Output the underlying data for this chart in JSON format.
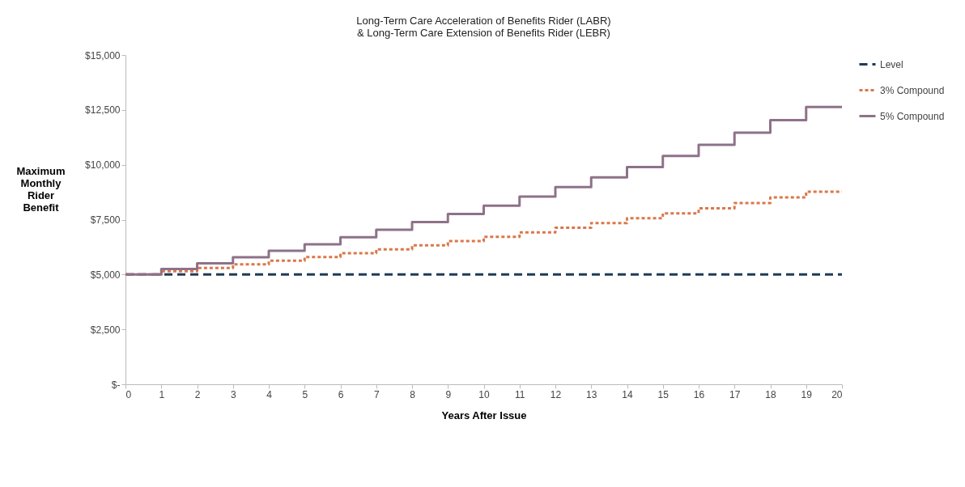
{
  "chart_data": {
    "type": "step",
    "title": "Long-Term Care Acceleration of Benefits Rider (LABR)\n& Long-Term Care Extension of Benefits Rider (LEBR)",
    "xlabel": "Years After Issue",
    "ylabel": "Maximum Monthly Rider Benefit",
    "x": [
      0,
      1,
      2,
      3,
      4,
      5,
      6,
      7,
      8,
      9,
      10,
      11,
      12,
      13,
      14,
      15,
      16,
      17,
      18,
      19,
      20
    ],
    "series": [
      {
        "name": "Level",
        "color": "#1f3b57",
        "line_style": "dashed",
        "values": [
          5000,
          5000,
          5000,
          5000,
          5000,
          5000,
          5000,
          5000,
          5000,
          5000,
          5000,
          5000,
          5000,
          5000,
          5000,
          5000,
          5000,
          5000,
          5000,
          5000,
          5000
        ]
      },
      {
        "name": "3% Compound",
        "color": "#d9784a",
        "line_style": "dotted",
        "values": [
          5000,
          5150,
          5300,
          5460,
          5630,
          5800,
          5970,
          6150,
          6330,
          6520,
          6720,
          6920,
          7130,
          7340,
          7560,
          7790,
          8020,
          8260,
          8510,
          8770,
          8770
        ]
      },
      {
        "name": "5% Compound",
        "color": "#8e7289",
        "line_style": "solid",
        "values": [
          5000,
          5250,
          5510,
          5790,
          6080,
          6380,
          6700,
          7040,
          7390,
          7760,
          8140,
          8550,
          8980,
          9430,
          9900,
          10400,
          10910,
          11460,
          12030,
          12630,
          12630
        ]
      }
    ],
    "xlim": [
      0,
      20
    ],
    "xticks": [
      0,
      1,
      2,
      3,
      4,
      5,
      6,
      7,
      8,
      9,
      10,
      11,
      12,
      13,
      14,
      15,
      16,
      17,
      18,
      19,
      20
    ],
    "ylim": [
      0,
      15000
    ],
    "yticks": [
      {
        "value": 0,
        "label": "$-"
      },
      {
        "value": 2500,
        "label": "$2,500"
      },
      {
        "value": 5000,
        "label": "$5,000"
      },
      {
        "value": 7500,
        "label": "$7,500"
      },
      {
        "value": 10000,
        "label": "$10,000"
      },
      {
        "value": 12500,
        "label": "$12,500"
      },
      {
        "value": 15000,
        "label": "$15,000"
      }
    ],
    "grid": false,
    "legend": "right"
  }
}
